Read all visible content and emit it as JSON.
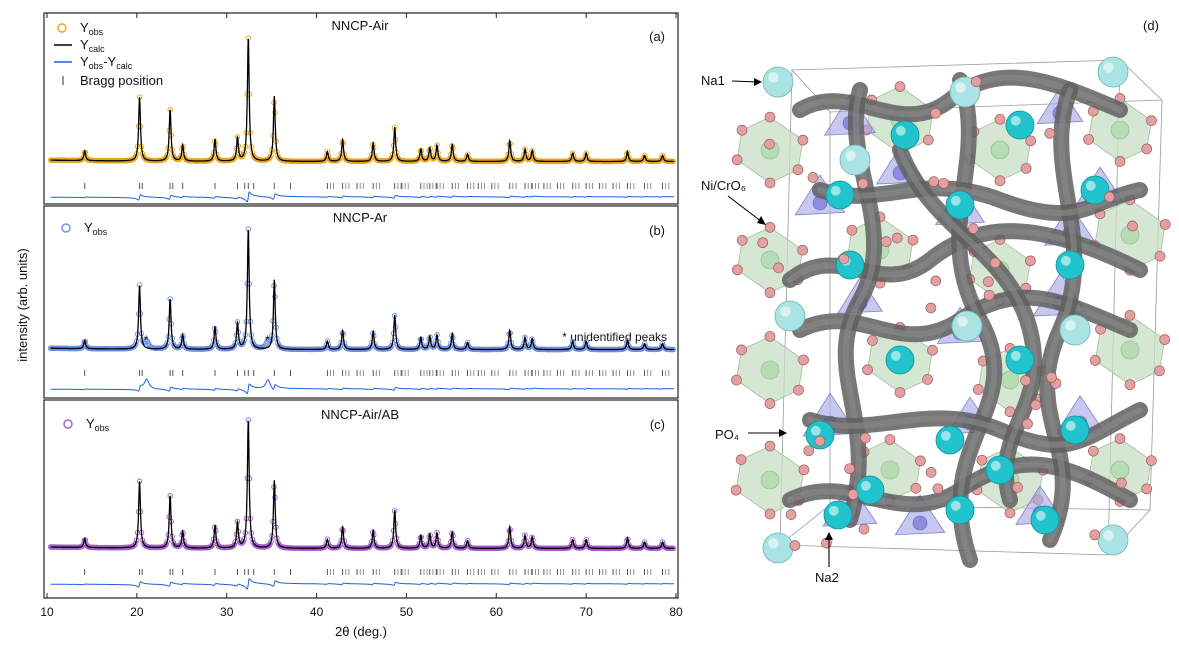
{
  "figure": {
    "ylabel": "intensity (arb. units)",
    "xlabel": "2θ (deg.)",
    "x_ticks": [
      10,
      20,
      30,
      40,
      50,
      60,
      70,
      80
    ],
    "legend_bragg": "Bragg position",
    "annotation_unidentified": "* unidentified peaks",
    "structure_labels": {
      "panel": "(d)",
      "na1": "Na1",
      "nicro6": "Ni/CrO₆",
      "po4": "PO₄",
      "na2": "Na2"
    }
  },
  "chart_data": [
    {
      "type": "line",
      "title": "NNCP-Air",
      "panel": "(a)",
      "xlim": [
        10,
        80
      ],
      "series": [
        {
          "name": "Yobs",
          "color": "#e8a317",
          "marker": "open-circle"
        },
        {
          "name": "Ycalc",
          "color": "#000000"
        },
        {
          "name": "Yobs-Ycalc",
          "color": "#1f5fe0"
        },
        {
          "name": "Bragg position",
          "color": "#555555",
          "marker": "tick"
        }
      ],
      "peaks_2theta": [
        14.2,
        20.3,
        23.7,
        25.1,
        28.7,
        31.2,
        32.4,
        35.3,
        41.2,
        42.9,
        46.3,
        48.7,
        51.6,
        52.6,
        53.4,
        55.1,
        56.8,
        61.5,
        63.2,
        64.0,
        68.5,
        70.0,
        74.6,
        76.5,
        78.5
      ],
      "peak_heights": [
        0.08,
        0.52,
        0.42,
        0.13,
        0.18,
        0.19,
        1.0,
        0.53,
        0.08,
        0.18,
        0.15,
        0.28,
        0.1,
        0.11,
        0.13,
        0.14,
        0.06,
        0.17,
        0.1,
        0.09,
        0.07,
        0.07,
        0.08,
        0.05,
        0.05
      ],
      "bragg_positions": [
        14.2,
        20.3,
        20.6,
        23.7,
        24.0,
        25.1,
        28.7,
        31.2,
        32.0,
        32.4,
        33.0,
        35.3,
        37.1,
        41.2,
        42.9,
        44.5,
        46.3,
        48.7,
        49.5,
        51.6,
        52.6,
        53.4,
        55.1,
        56.8,
        58.0,
        59.5,
        61.5,
        63.2,
        64.0,
        65.3,
        66.8,
        68.5,
        70.0,
        71.5,
        73.0,
        74.6,
        76.5,
        78.5
      ]
    },
    {
      "type": "line",
      "title": "NNCP-Ar",
      "panel": "(b)",
      "xlim": [
        10,
        80
      ],
      "series": [
        {
          "name": "Yobs",
          "color": "#6d8fe0",
          "marker": "open-circle"
        },
        {
          "name": "Ycalc",
          "color": "#000000"
        },
        {
          "name": "Yobs-Ycalc",
          "color": "#1f5fe0"
        },
        {
          "name": "Bragg position",
          "color": "#555555",
          "marker": "tick"
        }
      ],
      "unidentified_peaks_2theta": [
        21.1,
        34.6
      ],
      "peaks_2theta": [
        14.2,
        20.3,
        23.7,
        25.1,
        28.7,
        31.2,
        32.4,
        35.3,
        41.2,
        42.9,
        46.3,
        48.7,
        51.6,
        52.6,
        53.4,
        55.1,
        56.8,
        61.5,
        63.2,
        64.0,
        68.5,
        70.0,
        74.6,
        76.5,
        78.5
      ],
      "peak_heights": [
        0.07,
        0.53,
        0.42,
        0.12,
        0.19,
        0.22,
        1.0,
        0.58,
        0.07,
        0.16,
        0.15,
        0.29,
        0.1,
        0.11,
        0.12,
        0.13,
        0.06,
        0.16,
        0.1,
        0.09,
        0.07,
        0.07,
        0.08,
        0.05,
        0.05
      ]
    },
    {
      "type": "line",
      "title": "NNCP-Air/AB",
      "panel": "(c)",
      "xlim": [
        10,
        80
      ],
      "series": [
        {
          "name": "Yobs",
          "color": "#a35cc9",
          "marker": "open-circle"
        },
        {
          "name": "Ycalc",
          "color": "#000000"
        },
        {
          "name": "Yobs-Ycalc",
          "color": "#1f5fe0"
        },
        {
          "name": "Bragg position",
          "color": "#555555",
          "marker": "tick"
        }
      ],
      "peaks_2theta": [
        14.2,
        20.3,
        23.7,
        25.1,
        28.7,
        31.2,
        32.4,
        35.3,
        41.2,
        42.9,
        46.3,
        48.7,
        51.6,
        52.6,
        53.4,
        55.1,
        56.8,
        61.5,
        63.2,
        64.0,
        68.5,
        70.0,
        74.6,
        76.5,
        78.5
      ],
      "peak_heights": [
        0.07,
        0.52,
        0.41,
        0.13,
        0.18,
        0.2,
        1.0,
        0.53,
        0.07,
        0.17,
        0.14,
        0.3,
        0.1,
        0.11,
        0.12,
        0.13,
        0.06,
        0.17,
        0.1,
        0.09,
        0.07,
        0.07,
        0.08,
        0.05,
        0.05
      ]
    }
  ]
}
